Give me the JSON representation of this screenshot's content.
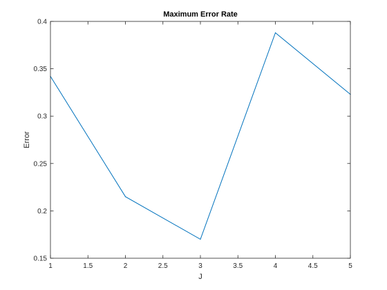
{
  "chart_data": {
    "type": "line",
    "title": "Maximum Error Rate",
    "xlabel": "J",
    "ylabel": "Error",
    "x": [
      1,
      2,
      3,
      4,
      5
    ],
    "series": [
      {
        "values": [
          0.342,
          0.215,
          0.17,
          0.388,
          0.323
        ],
        "color": "#0072bd"
      }
    ],
    "xlim": [
      1,
      5
    ],
    "ylim": [
      0.15,
      0.4
    ],
    "xticks": [
      "1",
      "1.5",
      "2",
      "2.5",
      "3",
      "3.5",
      "4",
      "4.5",
      "5"
    ],
    "yticks": [
      "0.15",
      "0.2",
      "0.25",
      "0.3",
      "0.35",
      "0.4"
    ],
    "grid": false,
    "box": true,
    "axis_color": "#262626"
  }
}
